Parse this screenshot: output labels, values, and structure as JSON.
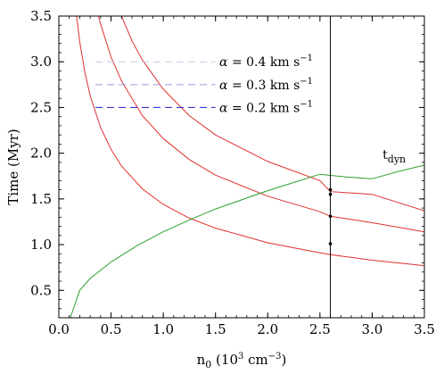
{
  "chart_data": {
    "type": "line",
    "xlabel": "n0 (10^3 cm^-3)",
    "xlabel_parts": {
      "main": "n",
      "main_sub": "0",
      "open": " (10",
      "exp1": "3",
      "unit": " cm",
      "exp2": "−3",
      "close": ")"
    },
    "ylabel": "Time (Myr)",
    "xlim": [
      0.0,
      3.5
    ],
    "ylim": [
      0.2,
      3.5
    ],
    "grid": false,
    "x_ticks": [
      0.0,
      0.5,
      1.0,
      1.5,
      2.0,
      2.5,
      3.0,
      3.5
    ],
    "x_tick_labels": [
      "0.0",
      "0.5",
      "1.0",
      "1.5",
      "2.0",
      "2.5",
      "3.0",
      "3.5"
    ],
    "y_ticks": [
      0.5,
      1.0,
      1.5,
      2.0,
      2.5,
      3.0,
      3.5
    ],
    "y_tick_labels": [
      "0.5",
      "1.0",
      "1.5",
      "2.0",
      "2.5",
      "3.0",
      "3.5"
    ],
    "legend_location": "upper-center",
    "legend_entries": [
      {
        "prefix": "α",
        "mid": " = 0.4 km s",
        "exp": "−1",
        "color": "#c8c8e6",
        "y": 3.0
      },
      {
        "prefix": "α",
        "mid": " = 0.3 km s",
        "exp": "−1",
        "color": "#9a9ae0",
        "y": 2.75
      },
      {
        "prefix": "α",
        "mid": " = 0.2 km s",
        "exp": "−1",
        "color": "#1f1fd0",
        "y": 2.5
      }
    ],
    "series": [
      {
        "color": "#e03030",
        "x": [
          0.17,
          0.2,
          0.25,
          0.3,
          0.4,
          0.5,
          0.6,
          0.8,
          1.0,
          1.25,
          1.5,
          2.0,
          2.5,
          2.6,
          3.0,
          3.5
        ],
        "y": [
          3.5,
          3.22,
          2.88,
          2.63,
          2.28,
          2.04,
          1.86,
          1.61,
          1.44,
          1.29,
          1.18,
          1.02,
          0.91,
          0.89,
          0.83,
          0.77
        ]
      },
      {
        "color": "#e03030",
        "x": [
          0.38,
          0.4,
          0.5,
          0.6,
          0.8,
          1.0,
          1.25,
          1.5,
          2.0,
          2.5,
          2.6,
          3.0,
          3.5
        ],
        "y": [
          3.5,
          3.41,
          3.05,
          2.79,
          2.41,
          2.16,
          1.93,
          1.76,
          1.53,
          1.36,
          1.31,
          1.24,
          1.14
        ]
      },
      {
        "color": "#e03030",
        "x": [
          0.6,
          0.7,
          0.8,
          1.0,
          1.25,
          1.5,
          2.0,
          2.5,
          2.6,
          3.0,
          3.5
        ],
        "y": [
          3.5,
          3.23,
          3.02,
          2.7,
          2.41,
          2.2,
          1.91,
          1.7,
          1.58,
          1.55,
          1.37
        ]
      },
      {
        "color": "#2ca02c",
        "x": [
          0.11,
          0.2,
          0.3,
          0.5,
          0.75,
          1.0,
          1.25,
          1.5,
          1.75,
          2.0,
          2.25,
          2.5,
          2.75,
          3.0,
          3.25,
          3.5
        ],
        "y": [
          0.2,
          0.5,
          0.63,
          0.81,
          0.99,
          1.14,
          1.27,
          1.39,
          1.49,
          1.59,
          1.68,
          1.77,
          1.74,
          1.72,
          1.8,
          1.87
        ]
      }
    ],
    "green_label": {
      "main": "t",
      "sub": "dyn",
      "x": 3.1,
      "y": 1.9
    },
    "vline": {
      "x": 2.6,
      "color": "#000000"
    },
    "markers": [
      {
        "x": 2.6,
        "y": 1.01
      },
      {
        "x": 2.6,
        "y": 1.31
      },
      {
        "x": 2.6,
        "y": 1.55
      },
      {
        "x": 2.6,
        "y": 1.6
      }
    ]
  }
}
